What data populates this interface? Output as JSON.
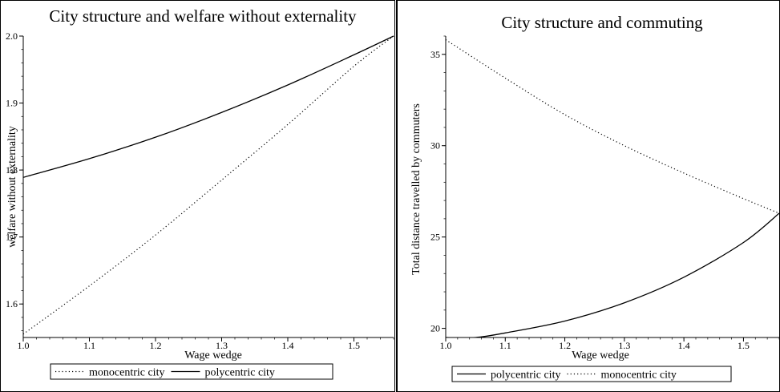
{
  "chart_data": [
    {
      "type": "line",
      "title": "City structure and welfare without externality",
      "xlabel": "Wage wedge",
      "ylabel": "welfare without externality",
      "xlim": [
        1.0,
        1.56
      ],
      "ylim": [
        1.55,
        2.0
      ],
      "xticks": [
        1.0,
        1.1,
        1.2,
        1.3,
        1.4,
        1.5
      ],
      "xtick_labels": [
        "1.0",
        "1.1",
        "1.2",
        "1.3",
        "1.4",
        "1.5"
      ],
      "yticks": [
        1.6,
        1.7,
        1.8,
        1.9,
        2.0
      ],
      "ytick_labels": [
        "1.6",
        "1.7",
        "1.8",
        "1.9",
        "2.0"
      ],
      "legend_position": "bottom",
      "series": [
        {
          "name": "monocentric city",
          "style": "dotted",
          "x": [
            1.0,
            1.1,
            1.2,
            1.3,
            1.4,
            1.5,
            1.56
          ],
          "y": [
            1.555,
            1.627,
            1.703,
            1.785,
            1.868,
            1.955,
            2.0
          ]
        },
        {
          "name": "polycentric city",
          "style": "solid",
          "x": [
            1.0,
            1.1,
            1.2,
            1.3,
            1.4,
            1.5,
            1.56
          ],
          "y": [
            1.789,
            1.817,
            1.849,
            1.886,
            1.927,
            1.972,
            2.0
          ]
        }
      ]
    },
    {
      "type": "line",
      "title": "City structure and commuting",
      "xlabel": "Wage wedge",
      "ylabel": "Total distance travelled by commuters",
      "xlim": [
        1.0,
        1.56
      ],
      "ylim": [
        19.5,
        36.0
      ],
      "xticks": [
        1.0,
        1.1,
        1.2,
        1.3,
        1.4,
        1.5
      ],
      "xtick_labels": [
        "1.0",
        "1.1",
        "1.2",
        "1.3",
        "1.4",
        "1.5"
      ],
      "yticks": [
        20,
        25,
        30,
        35
      ],
      "ytick_labels": [
        "20",
        "25",
        "30",
        "35"
      ],
      "legend_position": "bottom",
      "series": [
        {
          "name": "polycentric city",
          "style": "solid",
          "x": [
            1.0,
            1.05,
            1.1,
            1.2,
            1.3,
            1.4,
            1.5,
            1.56
          ],
          "y": [
            19.5,
            19.5,
            19.75,
            20.4,
            21.4,
            22.8,
            24.7,
            26.3
          ]
        },
        {
          "name": "monocentric city",
          "style": "dotted",
          "x": [
            1.0,
            1.1,
            1.2,
            1.3,
            1.4,
            1.5,
            1.56
          ],
          "y": [
            35.8,
            33.7,
            31.7,
            30.0,
            28.5,
            27.1,
            26.3
          ]
        }
      ]
    }
  ]
}
